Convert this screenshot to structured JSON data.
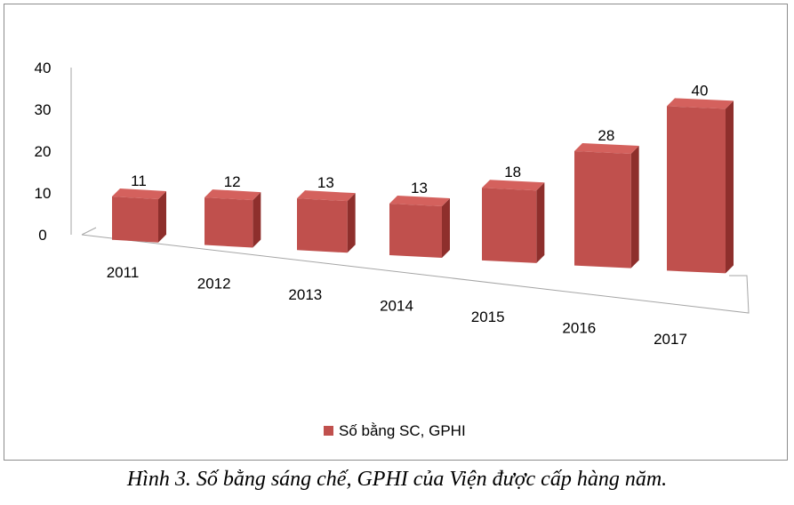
{
  "chart_data": {
    "type": "bar",
    "style": "3d-column",
    "categories": [
      "2011",
      "2012",
      "2013",
      "2014",
      "2015",
      "2016",
      "2017"
    ],
    "series": [
      {
        "name": "Số bằng SC, GPHI",
        "values": [
          11,
          12,
          13,
          13,
          18,
          28,
          40
        ],
        "color": "#c0504d"
      }
    ],
    "y_ticks": [
      "0",
      "10",
      "20",
      "30",
      "40"
    ],
    "ylim": [
      0,
      40
    ],
    "grid": false,
    "data_labels": true,
    "legend_position": "bottom"
  },
  "caption": "Hình 3. Số bằng sáng chế, GPHI của Viện được cấp hàng năm."
}
